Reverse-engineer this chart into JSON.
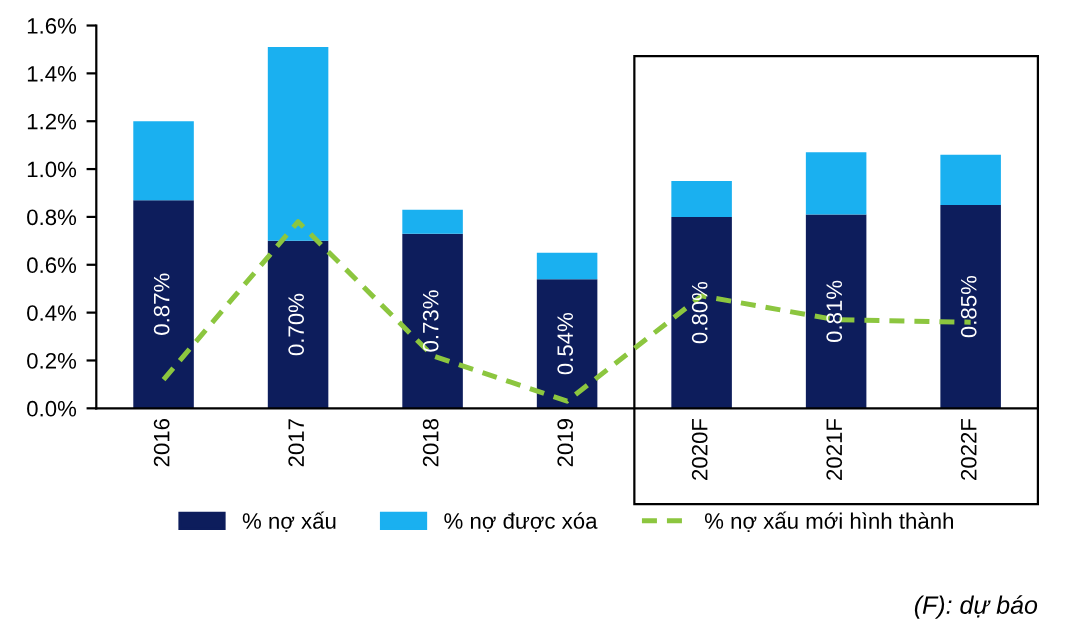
{
  "chart_data": {
    "type": "bar",
    "stacked": true,
    "categories": [
      "2016",
      "2017",
      "2018",
      "2019",
      "2020F",
      "2021F",
      "2022F"
    ],
    "series": [
      {
        "name": "% nợ xấu",
        "color": "#0d1d5c",
        "values": [
          0.87,
          0.7,
          0.73,
          0.54,
          0.8,
          0.81,
          0.85
        ],
        "value_labels": [
          "0.87%",
          "0.70%",
          "0.73%",
          "0.54%",
          "0.80%",
          "0.81%",
          "0.85%"
        ]
      },
      {
        "name": "% nợ được xóa",
        "color": "#1ab0f0",
        "values": [
          0.33,
          0.81,
          0.1,
          0.11,
          0.15,
          0.26,
          0.21
        ]
      },
      {
        "name": "% nợ xấu mới hình thành",
        "type": "line",
        "color": "#8cc63f",
        "line_style": "dashed",
        "values": [
          0.12,
          0.78,
          0.22,
          0.03,
          0.47,
          0.37,
          0.36
        ]
      }
    ],
    "ylim": [
      0,
      1.6
    ],
    "yticks": [
      {
        "value": 0,
        "label": "0.0%"
      },
      {
        "value": 0.2,
        "label": "0.2%"
      },
      {
        "value": 0.4,
        "label": "0.4%"
      },
      {
        "value": 0.6,
        "label": "0.6%"
      },
      {
        "value": 0.8,
        "label": "0.8%"
      },
      {
        "value": 1.0,
        "label": "1.0%"
      },
      {
        "value": 1.2,
        "label": "1.2%"
      },
      {
        "value": 1.4,
        "label": "1.4%"
      },
      {
        "value": 1.6,
        "label": "1.6%"
      }
    ],
    "grid": false,
    "legend": "bottom",
    "annotations": [
      "(F): dự báo"
    ]
  }
}
